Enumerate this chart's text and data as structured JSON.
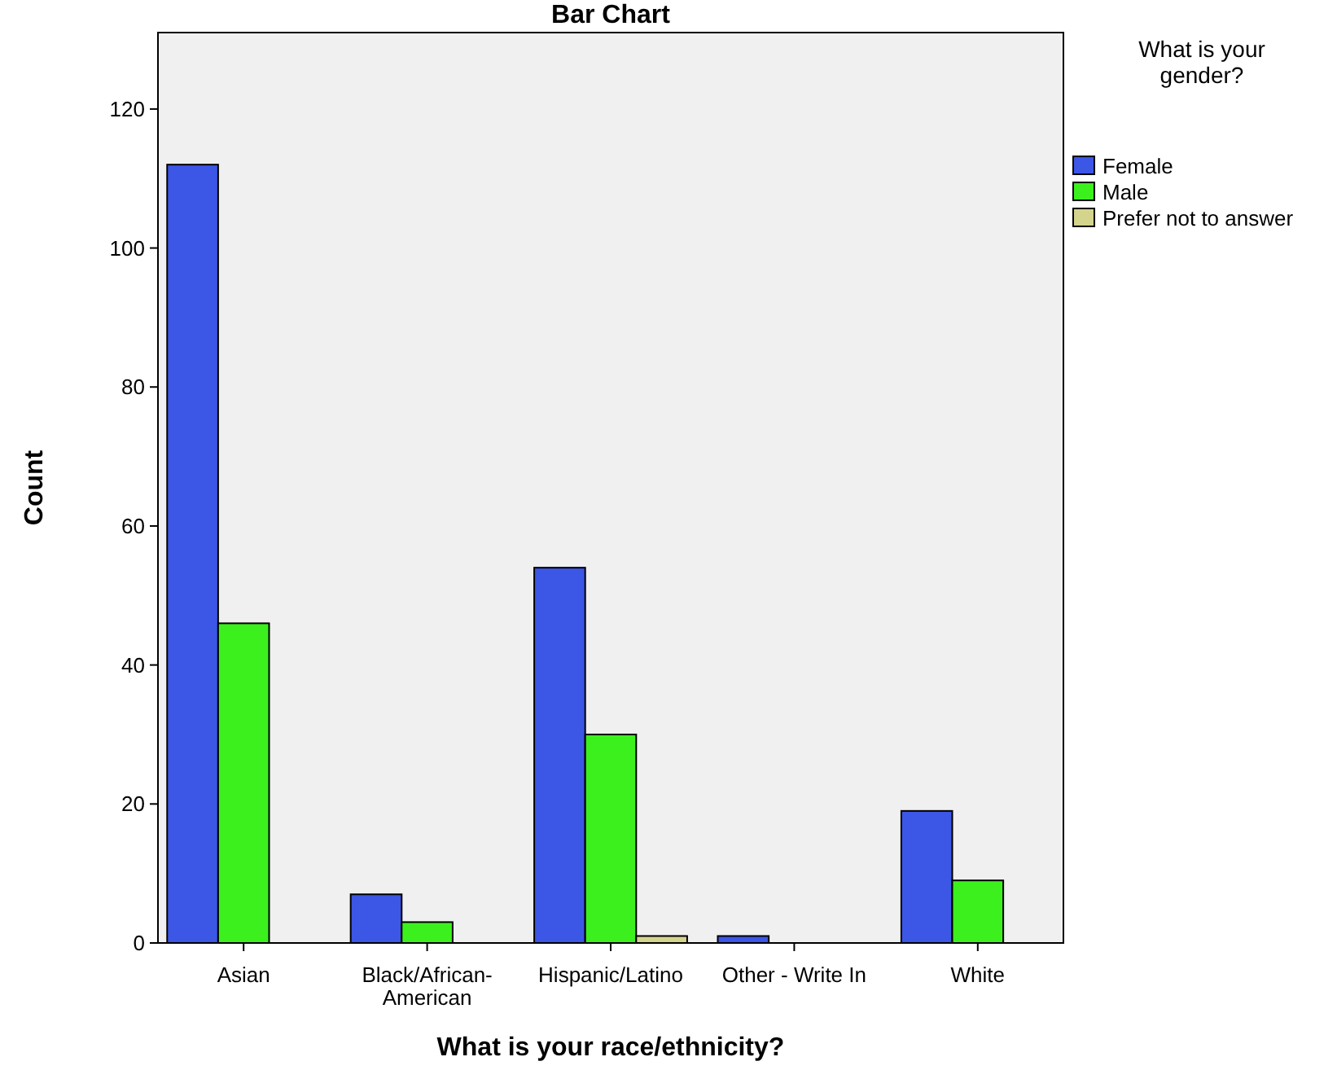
{
  "chart_data": {
    "type": "bar",
    "title": "Bar Chart",
    "xlabel": "What is your race/ethnicity?",
    "ylabel": "Count",
    "legend_title": "What is your gender?",
    "categories": [
      "Asian",
      "Black/African-American",
      "Hispanic/Latino",
      "Other - Write In",
      "White"
    ],
    "series": [
      {
        "name": "Female",
        "color": "#3c56e6",
        "values": [
          112,
          7,
          54,
          1,
          19
        ]
      },
      {
        "name": "Male",
        "color": "#3cf01e",
        "values": [
          46,
          3,
          30,
          null,
          9
        ]
      },
      {
        "name": "Prefer not to answer",
        "color": "#d4d48c",
        "values": [
          null,
          null,
          1,
          null,
          null
        ]
      }
    ],
    "ylim": [
      0,
      131
    ],
    "yticks": [
      0,
      20,
      40,
      60,
      80,
      100,
      120
    ],
    "grid": false,
    "legend": "right"
  }
}
